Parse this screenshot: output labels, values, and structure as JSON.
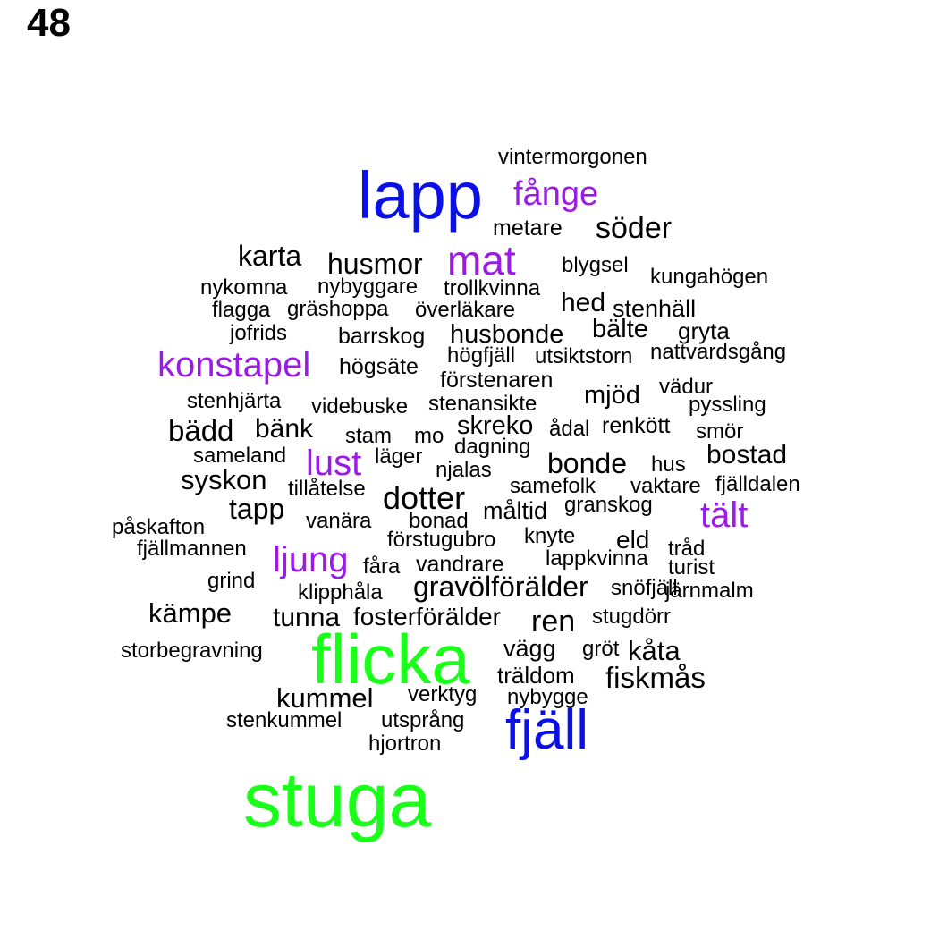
{
  "page_number": "48",
  "colors": {
    "green": "#1aff1a",
    "blue": "#0a10e6",
    "purple": "#9b1be6",
    "black": "#000000"
  },
  "words": [
    {
      "text": "stuga",
      "color": "green"
    },
    {
      "text": "flicka",
      "color": "green"
    },
    {
      "text": "lapp",
      "color": "blue"
    },
    {
      "text": "fjäll",
      "color": "blue"
    },
    {
      "text": "mat",
      "color": "purple"
    },
    {
      "text": "fånge",
      "color": "purple"
    },
    {
      "text": "konstapel",
      "color": "purple"
    },
    {
      "text": "lust",
      "color": "purple"
    },
    {
      "text": "tält",
      "color": "purple"
    },
    {
      "text": "ljung",
      "color": "purple"
    },
    {
      "text": "vintermorgonen",
      "color": "black"
    },
    {
      "text": "metare",
      "color": "black"
    },
    {
      "text": "söder",
      "color": "black"
    },
    {
      "text": "karta",
      "color": "black"
    },
    {
      "text": "husmor",
      "color": "black"
    },
    {
      "text": "blygsel",
      "color": "black"
    },
    {
      "text": "kungahögen",
      "color": "black"
    },
    {
      "text": "nykomna",
      "color": "black"
    },
    {
      "text": "nybyggare",
      "color": "black"
    },
    {
      "text": "trollkvinna",
      "color": "black"
    },
    {
      "text": "hed",
      "color": "black"
    },
    {
      "text": "stenhäll",
      "color": "black"
    },
    {
      "text": "flagga",
      "color": "black"
    },
    {
      "text": "gräshoppa",
      "color": "black"
    },
    {
      "text": "överläkare",
      "color": "black"
    },
    {
      "text": "bälte",
      "color": "black"
    },
    {
      "text": "gryta",
      "color": "black"
    },
    {
      "text": "jofrids",
      "color": "black"
    },
    {
      "text": "barrskog",
      "color": "black"
    },
    {
      "text": "husbonde",
      "color": "black"
    },
    {
      "text": "högfjäll",
      "color": "black"
    },
    {
      "text": "utsiktstorn",
      "color": "black"
    },
    {
      "text": "nattvardsgång",
      "color": "black"
    },
    {
      "text": "högsäte",
      "color": "black"
    },
    {
      "text": "förstenaren",
      "color": "black"
    },
    {
      "text": "mjöd",
      "color": "black"
    },
    {
      "text": "vädur",
      "color": "black"
    },
    {
      "text": "stenhjärta",
      "color": "black"
    },
    {
      "text": "videbuske",
      "color": "black"
    },
    {
      "text": "stenansikte",
      "color": "black"
    },
    {
      "text": "pyssling",
      "color": "black"
    },
    {
      "text": "bädd",
      "color": "black"
    },
    {
      "text": "bänk",
      "color": "black"
    },
    {
      "text": "stam",
      "color": "black"
    },
    {
      "text": "mo",
      "color": "black"
    },
    {
      "text": "skreko",
      "color": "black"
    },
    {
      "text": "ådal",
      "color": "black"
    },
    {
      "text": "renkött",
      "color": "black"
    },
    {
      "text": "smör",
      "color": "black"
    },
    {
      "text": "dagning",
      "color": "black"
    },
    {
      "text": "sameland",
      "color": "black"
    },
    {
      "text": "läger",
      "color": "black"
    },
    {
      "text": "njalas",
      "color": "black"
    },
    {
      "text": "bonde",
      "color": "black"
    },
    {
      "text": "hus",
      "color": "black"
    },
    {
      "text": "bostad",
      "color": "black"
    },
    {
      "text": "syskon",
      "color": "black"
    },
    {
      "text": "tillåtelse",
      "color": "black"
    },
    {
      "text": "dotter",
      "color": "black"
    },
    {
      "text": "samefolk",
      "color": "black"
    },
    {
      "text": "vaktare",
      "color": "black"
    },
    {
      "text": "fjälldalen",
      "color": "black"
    },
    {
      "text": "tapp",
      "color": "black"
    },
    {
      "text": "vanära",
      "color": "black"
    },
    {
      "text": "bonad",
      "color": "black"
    },
    {
      "text": "måltid",
      "color": "black"
    },
    {
      "text": "granskog",
      "color": "black"
    },
    {
      "text": "påskafton",
      "color": "black"
    },
    {
      "text": "förstugubro",
      "color": "black"
    },
    {
      "text": "knyte",
      "color": "black"
    },
    {
      "text": "eld",
      "color": "black"
    },
    {
      "text": "tråd",
      "color": "black"
    },
    {
      "text": "fjällmannen",
      "color": "black"
    },
    {
      "text": "fåra",
      "color": "black"
    },
    {
      "text": "vandrare",
      "color": "black"
    },
    {
      "text": "lappkvinna",
      "color": "black"
    },
    {
      "text": "turist",
      "color": "black"
    },
    {
      "text": "grind",
      "color": "black"
    },
    {
      "text": "klipphåla",
      "color": "black"
    },
    {
      "text": "gravölförälder",
      "color": "black"
    },
    {
      "text": "snöfjäll",
      "color": "black"
    },
    {
      "text": "järnmalm",
      "color": "black"
    },
    {
      "text": "kämpe",
      "color": "black"
    },
    {
      "text": "tunna",
      "color": "black"
    },
    {
      "text": "fosterförälder",
      "color": "black"
    },
    {
      "text": "ren",
      "color": "black"
    },
    {
      "text": "stugdörr",
      "color": "black"
    },
    {
      "text": "storbegravning",
      "color": "black"
    },
    {
      "text": "vägg",
      "color": "black"
    },
    {
      "text": "gröt",
      "color": "black"
    },
    {
      "text": "kåta",
      "color": "black"
    },
    {
      "text": "träldom",
      "color": "black"
    },
    {
      "text": "fiskmås",
      "color": "black"
    },
    {
      "text": "kummel",
      "color": "black"
    },
    {
      "text": "verktyg",
      "color": "black"
    },
    {
      "text": "nybygge",
      "color": "black"
    },
    {
      "text": "stenkummel",
      "color": "black"
    },
    {
      "text": "utsprång",
      "color": "black"
    },
    {
      "text": "hjortron",
      "color": "black"
    }
  ]
}
